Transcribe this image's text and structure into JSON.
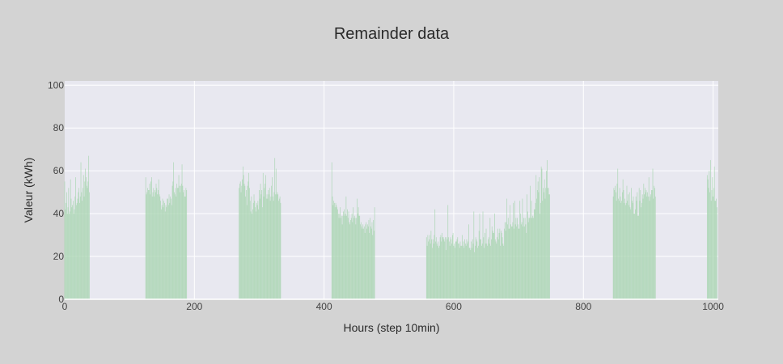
{
  "chart_data": {
    "type": "bar",
    "title": "Remainder data",
    "xlabel": "Hours (step 10min)",
    "ylabel": "Valeur (kWh)",
    "xlim": [
      0,
      1008
    ],
    "ylim": [
      0,
      102
    ],
    "x_ticks": [
      0,
      200,
      400,
      600,
      800,
      1000
    ],
    "y_ticks": [
      0,
      20,
      40,
      60,
      80,
      100
    ],
    "grid": true,
    "legend": "none",
    "bar_color": "#a8d5b0",
    "plot_background": "#e8e8f0",
    "page_background": "#d3d3d3",
    "bar_width": 1,
    "segments": [
      {
        "x_start": 0,
        "values": [
          55,
          42,
          45,
          50,
          40,
          43,
          52,
          40,
          41,
          56,
          47,
          43,
          44,
          46,
          40,
          42,
          48,
          57,
          44,
          45,
          47,
          50,
          52,
          45,
          48,
          64,
          50,
          46,
          52,
          58,
          48,
          55,
          61,
          57,
          53,
          52,
          55,
          67,
          50
        ]
      },
      {
        "x_start": 125,
        "values": [
          57,
          49,
          50,
          52,
          51,
          51,
          54,
          49,
          55,
          57,
          48,
          50,
          52,
          48,
          51,
          50,
          54,
          52,
          49,
          51,
          56,
          49,
          48,
          46,
          42,
          44,
          47,
          43,
          46,
          45,
          41,
          44,
          43,
          47,
          47,
          44,
          49,
          45,
          48,
          47,
          44,
          53,
          55,
          64,
          50,
          49,
          52,
          48,
          54,
          52,
          52,
          58,
          53,
          50,
          53,
          54,
          63,
          53,
          50,
          51,
          48,
          48,
          52,
          51
        ]
      },
      {
        "x_start": 269,
        "values": [
          52,
          54,
          55,
          50,
          53,
          56,
          62,
          58,
          54,
          53,
          48,
          51,
          44,
          53,
          55,
          59,
          52,
          46,
          41,
          48,
          40,
          42,
          45,
          49,
          46,
          43,
          41,
          45,
          44,
          46,
          42,
          51,
          47,
          54,
          49,
          51,
          43,
          59,
          48,
          52,
          54,
          58,
          47,
          49,
          47,
          51,
          49,
          52,
          46,
          48,
          53,
          57,
          48,
          46,
          50,
          66,
          49,
          61,
          49,
          50,
          49,
          46,
          47,
          48,
          45
        ]
      },
      {
        "x_start": 412,
        "values": [
          64,
          48,
          44,
          46,
          45,
          43,
          45,
          44,
          43,
          42,
          40,
          38,
          40,
          43,
          38,
          39,
          35,
          39,
          41,
          42,
          39,
          40,
          48,
          39,
          42,
          38,
          41,
          36,
          35,
          37,
          38,
          40,
          36,
          43,
          38,
          39,
          38,
          35,
          38,
          47,
          40,
          43,
          39,
          39,
          35,
          36,
          34,
          33,
          35,
          33,
          34,
          31,
          35,
          36,
          33,
          35,
          34,
          37,
          31,
          38,
          34,
          33,
          36,
          30,
          37,
          32,
          43
        ]
      },
      {
        "x_start": 558,
        "values": [
          29,
          25,
          30,
          27,
          28,
          30,
          26,
          32,
          28,
          24,
          28,
          26,
          30,
          42,
          27,
          29,
          26,
          25,
          27,
          24,
          25,
          29,
          30,
          27,
          31,
          29,
          29,
          28,
          27,
          29,
          23,
          29,
          28,
          44,
          29,
          27,
          25,
          29,
          28,
          26,
          30,
          31,
          25,
          26,
          24,
          27,
          27,
          28,
          29,
          26,
          26,
          24,
          27,
          25,
          25,
          30,
          25,
          27,
          24,
          28,
          26,
          25,
          28,
          26,
          27,
          35,
          24,
          24,
          23,
          27,
          24,
          28,
          26,
          41,
          22,
          25,
          29,
          28,
          27,
          24,
          25,
          32,
          40,
          28,
          28,
          25,
          26,
          41,
          29,
          24,
          31,
          26,
          33,
          26,
          25,
          28,
          29,
          26,
          38,
          25,
          28,
          34,
          32,
          31,
          31,
          40,
          28,
          27,
          26,
          29,
          33,
          28,
          31,
          33,
          25,
          32,
          31,
          29,
          26,
          25,
          33,
          36,
          32,
          36,
          47,
          35,
          38,
          33,
          33,
          44,
          35,
          34,
          34,
          36,
          45,
          33,
          46,
          35,
          38,
          34,
          38,
          35,
          33,
          33,
          46,
          40,
          35,
          36,
          47,
          34,
          38,
          34,
          38,
          35,
          31,
          49,
          41,
          36,
          38,
          38,
          53,
          38,
          46,
          38,
          39,
          38,
          42,
          42,
          45,
          58,
          47,
          51,
          55,
          50,
          57,
          40,
          45,
          62,
          61,
          46,
          52,
          50,
          56,
          47,
          52,
          60,
          65,
          52,
          52,
          49,
          49
        ]
      },
      {
        "x_start": 846,
        "values": [
          48,
          52,
          51,
          53,
          50,
          46,
          54,
          61,
          47,
          46,
          52,
          48,
          45,
          46,
          50,
          56,
          51,
          45,
          47,
          44,
          45,
          53,
          46,
          49,
          44,
          50,
          43,
          42,
          52,
          46,
          45,
          48,
          40,
          40,
          42,
          48,
          46,
          50,
          39,
          39,
          52,
          46,
          51,
          43,
          45,
          49,
          47,
          54,
          49,
          52,
          50,
          51,
          48,
          50,
          48,
          57,
          46,
          48,
          49,
          51,
          51,
          61,
          47,
          53,
          52,
          48
        ]
      },
      {
        "x_start": 991,
        "values": [
          58,
          56,
          52,
          60,
          50,
          65,
          46,
          51,
          57,
          48,
          52,
          62,
          46,
          46,
          47,
          43
        ]
      }
    ]
  }
}
